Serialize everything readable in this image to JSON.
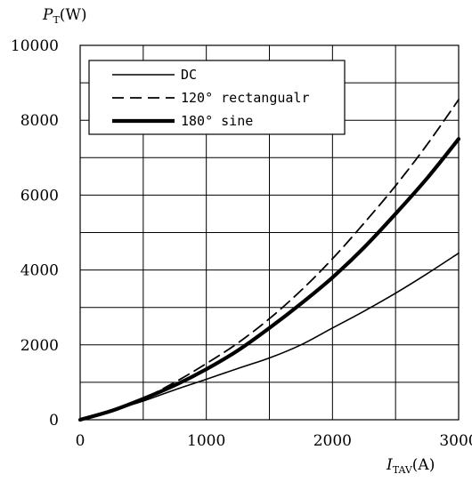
{
  "chart_data": {
    "type": "line",
    "title": "",
    "ylabel": {
      "symbol": "P",
      "sub": "T",
      "unit": "(W)"
    },
    "xlabel": {
      "symbol": "I",
      "sub": "TAV",
      "unit": "(A)"
    },
    "xlim": [
      0,
      3000
    ],
    "ylim": [
      0,
      10000
    ],
    "x_major_ticks": [
      0,
      1000,
      2000,
      3000
    ],
    "y_major_ticks": [
      0,
      2000,
      4000,
      6000,
      8000,
      10000
    ],
    "x_grid": [
      0,
      500,
      1000,
      1500,
      2000,
      2500,
      3000
    ],
    "y_grid": [
      0,
      1000,
      2000,
      3000,
      4000,
      5000,
      6000,
      7000,
      8000,
      9000,
      10000
    ],
    "grid": true,
    "legend_position": "top-left",
    "series": [
      {
        "name": "DC",
        "style": "thin-solid",
        "x": [
          0,
          250,
          500,
          750,
          1000,
          1250,
          1500,
          1750,
          2000,
          2250,
          2500,
          2750,
          3000
        ],
        "y": [
          0,
          250,
          500,
          800,
          1080,
          1370,
          1650,
          2000,
          2450,
          2900,
          3380,
          3900,
          4450
        ]
      },
      {
        "name": "120° rectangualr",
        "style": "dashed",
        "x": [
          0,
          250,
          500,
          750,
          1000,
          1250,
          1500,
          1750,
          2000,
          2250,
          2500,
          2750,
          3000
        ],
        "y": [
          0,
          250,
          570,
          1000,
          1500,
          2050,
          2700,
          3450,
          4300,
          5250,
          6250,
          7350,
          8550
        ]
      },
      {
        "name": "180° sine",
        "style": "thick-solid",
        "x": [
          0,
          250,
          500,
          750,
          1000,
          1250,
          1500,
          1750,
          2000,
          2250,
          2500,
          2750,
          3000
        ],
        "y": [
          0,
          240,
          560,
          920,
          1350,
          1850,
          2450,
          3100,
          3800,
          4600,
          5500,
          6450,
          7500
        ]
      }
    ]
  }
}
